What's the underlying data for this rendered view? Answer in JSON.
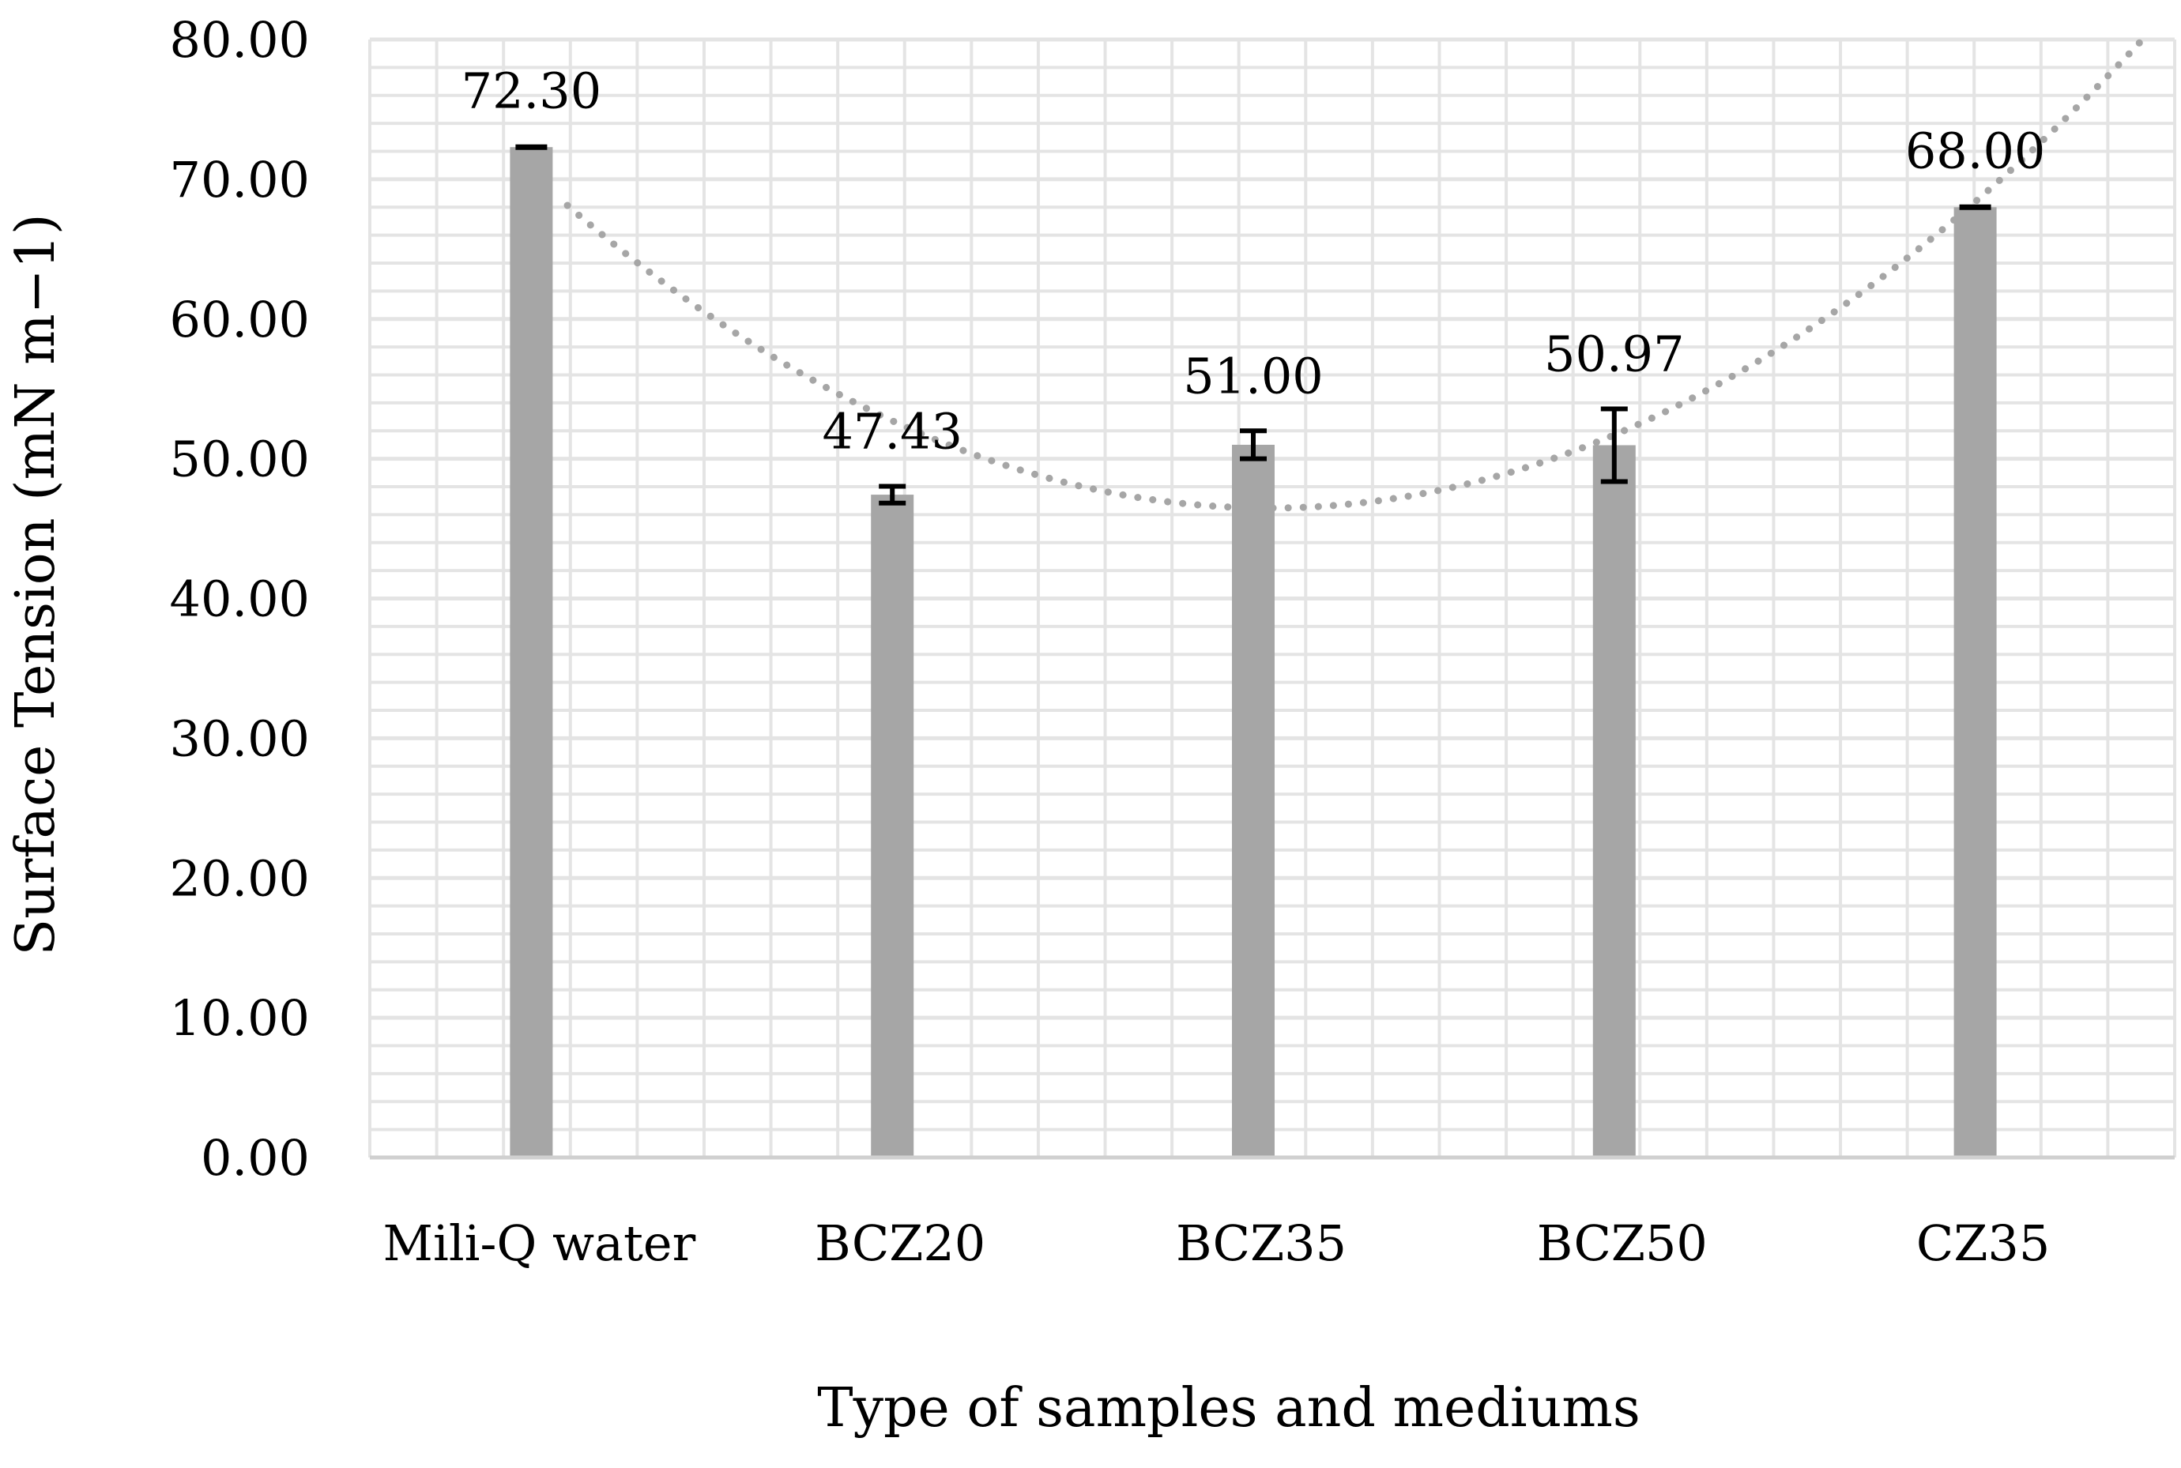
{
  "chart_data": {
    "type": "bar",
    "title": "",
    "xlabel": "Type of samples and mediums",
    "ylabel": "Surface Tension  (mN m−1)",
    "categories": [
      "Mili-Q water",
      "BCZ20",
      "BCZ35",
      "BCZ50",
      "CZ35"
    ],
    "values": [
      72.3,
      47.43,
      51.0,
      50.97,
      68.0
    ],
    "value_labels": [
      "72.30",
      "47.43",
      "51.00",
      "50.97",
      "68.00"
    ],
    "error": [
      0.1,
      0.6,
      1.0,
      2.6,
      0.1
    ],
    "ylim": [
      0,
      80
    ],
    "yticks": [
      "0.00",
      "10.00",
      "20.00",
      "30.00",
      "40.00",
      "50.00",
      "60.00",
      "70.00",
      "80.00"
    ],
    "grid": true,
    "legend": "none",
    "trendline": {
      "type": "polynomial",
      "order": 2,
      "style": "dotted"
    },
    "colors": {
      "bar": "#a6a6a6",
      "trend": "#a6a6a6",
      "error": "#000000",
      "grid": "#e4e4e4"
    }
  }
}
